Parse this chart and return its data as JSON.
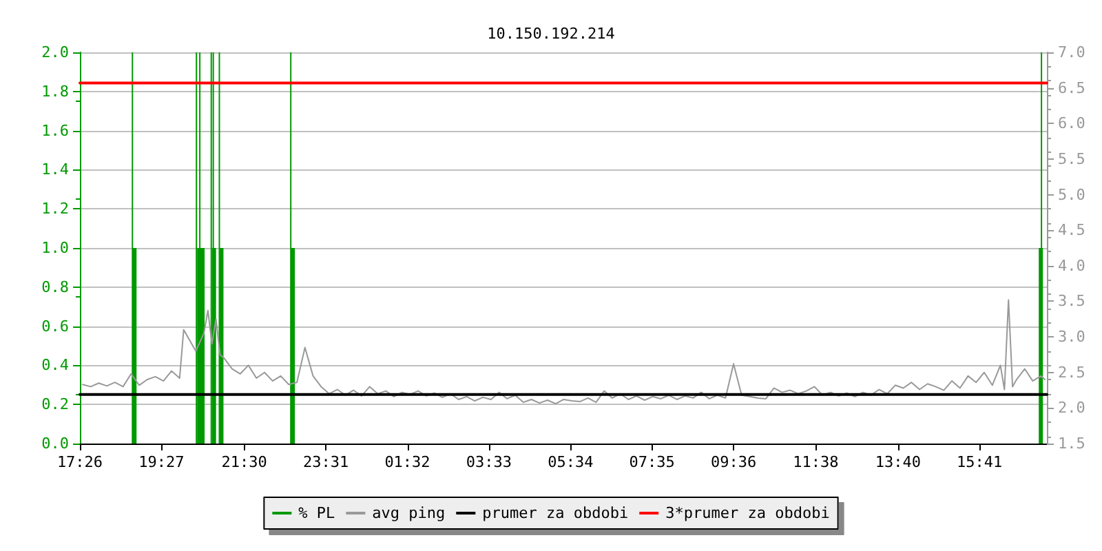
{
  "chart_data": {
    "type": "line",
    "title": "10.150.192.214",
    "xlim": [
      "--01-01T17:26",
      "--01-02T17:21"
    ],
    "xticks": [
      {
        "value": "--01-01T17:26",
        "label": "17:26"
      },
      {
        "value": "--01-01T19:27",
        "label": "19:27"
      },
      {
        "value": "--01-01T21:30",
        "label": "21:30"
      },
      {
        "value": "--01-01T23:31",
        "label": "23:31"
      },
      {
        "value": "--01-02T01:32",
        "label": "01:32"
      },
      {
        "value": "--01-02T03:33",
        "label": "03:33"
      },
      {
        "value": "--01-02T05:34",
        "label": "05:34"
      },
      {
        "value": "--01-02T07:35",
        "label": "07:35"
      },
      {
        "value": "--01-02T09:36",
        "label": "09:36"
      },
      {
        "value": "--01-02T11:38",
        "label": "11:38"
      },
      {
        "value": "--01-02T13:40",
        "label": "13:40"
      },
      {
        "value": "--01-02T15:41",
        "label": "15:41"
      }
    ],
    "ylim": [
      0,
      2
    ],
    "yticks": [
      {
        "value": 0,
        "label": "0.0"
      },
      {
        "value": 0.2,
        "label": "0.2"
      },
      {
        "value": 0.4,
        "label": "0.4"
      },
      {
        "value": 0.6,
        "label": "0.6"
      },
      {
        "value": 0.8,
        "label": "0.8"
      },
      {
        "value": 1,
        "label": "1.0"
      },
      {
        "value": 1.2,
        "label": "1.2"
      },
      {
        "value": 1.4,
        "label": "1.4"
      },
      {
        "value": 1.6,
        "label": "1.6"
      },
      {
        "value": 1.8,
        "label": "1.8"
      },
      {
        "value": 2,
        "label": "2.0"
      }
    ],
    "y2lim": [
      1.5,
      7
    ],
    "y2ticks": [
      1.5,
      {
        "value": 2,
        "label": "2.0"
      },
      2.5,
      {
        "value": 3,
        "label": "3.0"
      },
      3.5,
      {
        "value": 4,
        "label": "4.0"
      },
      4.5,
      {
        "value": 5,
        "label": "5.0"
      },
      5.5,
      {
        "value": 6,
        "label": "6.0"
      },
      6.5,
      {
        "value": 7,
        "label": "7.0"
      }
    ],
    "grid": "y",
    "legend": "bottom",
    "marker": "none",
    "line_style": "solid",
    "series": [
      {
        "name": "% PL",
        "type": "bar",
        "color": "#009900",
        "x": [
          "--01-01T18:46",
          "--01-01T18:47",
          "--01-01T20:21",
          "--01-01T20:23",
          "--01-01T20:26",
          "--01-01T20:28",
          "--01-01T20:43",
          "--01-01T20:45",
          "--01-01T20:46",
          "--01-01T20:55",
          "--01-01T20:56",
          "--01-01T22:41",
          "--01-01T22:42",
          "--01-02T17:12",
          "--01-02T17:15"
        ],
        "values": [
          2,
          1,
          2,
          1,
          2,
          1,
          2,
          1,
          2,
          2,
          1,
          2,
          1,
          1,
          2
        ]
      },
      {
        "name": "avg ping",
        "color": "#999999",
        "axis": "y2",
        "x": [
          "--01-01T17:30",
          "--01-01T17:42",
          "--01-01T17:54",
          "--01-01T18:06",
          "--01-01T18:18",
          "--01-01T18:30",
          "--01-01T18:42",
          "--01-01T18:54",
          "--01-01T19:06",
          "--01-01T19:18",
          "--01-01T19:30",
          "--01-01T19:42",
          "--01-01T19:54",
          "--01-01T20:00",
          "--01-01T20:18",
          "--01-01T20:30",
          "--01-01T20:36",
          "--01-01T20:42",
          "--01-01T20:48",
          "--01-01T20:54",
          "--01-01T21:00",
          "--01-01T21:12",
          "--01-01T21:24",
          "--01-01T21:36",
          "--01-01T21:48",
          "--01-01T22:00",
          "--01-01T22:12",
          "--01-01T22:24",
          "--01-01T22:36",
          "--01-01T22:48",
          "--01-01T23:00",
          "--01-01T23:12",
          "--01-01T23:24",
          "--01-01T23:36",
          "--01-01T23:48",
          "--01-02T00:00",
          "--01-02T00:12",
          "--01-02T00:24",
          "--01-02T00:36",
          "--01-02T00:48",
          "--01-02T01:00",
          "--01-02T01:12",
          "--01-02T01:24",
          "--01-02T01:36",
          "--01-02T01:48",
          "--01-02T02:00",
          "--01-02T02:12",
          "--01-02T02:24",
          "--01-02T02:36",
          "--01-02T02:48",
          "--01-02T03:00",
          "--01-02T03:12",
          "--01-02T03:24",
          "--01-02T03:36",
          "--01-02T03:48",
          "--01-02T04:00",
          "--01-02T04:12",
          "--01-02T04:24",
          "--01-02T04:36",
          "--01-02T04:48",
          "--01-02T05:00",
          "--01-02T05:12",
          "--01-02T05:24",
          "--01-02T05:36",
          "--01-02T05:48",
          "--01-02T06:00",
          "--01-02T06:12",
          "--01-02T06:24",
          "--01-02T06:36",
          "--01-02T06:48",
          "--01-02T07:00",
          "--01-02T07:12",
          "--01-02T07:24",
          "--01-02T07:36",
          "--01-02T07:48",
          "--01-02T08:00",
          "--01-02T08:12",
          "--01-02T08:24",
          "--01-02T08:36",
          "--01-02T08:48",
          "--01-02T09:00",
          "--01-02T09:12",
          "--01-02T09:24",
          "--01-02T09:36",
          "--01-02T09:48",
          "--01-02T10:00",
          "--01-02T10:12",
          "--01-02T10:24",
          "--01-02T10:36",
          "--01-02T10:48",
          "--01-02T11:00",
          "--01-02T11:12",
          "--01-02T11:24",
          "--01-02T11:36",
          "--01-02T11:48",
          "--01-02T12:00",
          "--01-02T12:12",
          "--01-02T12:24",
          "--01-02T12:36",
          "--01-02T12:48",
          "--01-02T13:00",
          "--01-02T13:12",
          "--01-02T13:24",
          "--01-02T13:36",
          "--01-02T13:48",
          "--01-02T14:00",
          "--01-02T14:12",
          "--01-02T14:24",
          "--01-02T14:36",
          "--01-02T14:48",
          "--01-02T15:00",
          "--01-02T15:12",
          "--01-02T15:24",
          "--01-02T15:36",
          "--01-02T15:48",
          "--01-02T16:00",
          "--01-02T16:12",
          "--01-02T16:18",
          "--01-02T16:24",
          "--01-02T16:30",
          "--01-02T16:36",
          "--01-02T16:48",
          "--01-02T17:00",
          "--01-02T17:12",
          "--01-02T17:18"
        ],
        "values": [
          2.33,
          2.3,
          2.35,
          2.31,
          2.36,
          2.3,
          2.48,
          2.32,
          2.4,
          2.44,
          2.38,
          2.52,
          2.42,
          3.1,
          2.8,
          3.05,
          3.37,
          2.9,
          3.25,
          2.75,
          2.7,
          2.55,
          2.48,
          2.6,
          2.42,
          2.5,
          2.38,
          2.45,
          2.33,
          2.36,
          2.85,
          2.45,
          2.3,
          2.2,
          2.26,
          2.18,
          2.25,
          2.17,
          2.3,
          2.2,
          2.24,
          2.16,
          2.22,
          2.19,
          2.24,
          2.17,
          2.21,
          2.15,
          2.2,
          2.12,
          2.16,
          2.1,
          2.15,
          2.12,
          2.22,
          2.13,
          2.18,
          2.08,
          2.12,
          2.07,
          2.11,
          2.06,
          2.12,
          2.1,
          2.09,
          2.14,
          2.08,
          2.24,
          2.14,
          2.2,
          2.12,
          2.17,
          2.11,
          2.16,
          2.13,
          2.18,
          2.12,
          2.17,
          2.14,
          2.22,
          2.13,
          2.18,
          2.14,
          2.62,
          2.18,
          2.16,
          2.14,
          2.13,
          2.28,
          2.22,
          2.25,
          2.2,
          2.24,
          2.3,
          2.18,
          2.22,
          2.17,
          2.21,
          2.16,
          2.22,
          2.18,
          2.26,
          2.2,
          2.32,
          2.28,
          2.36,
          2.26,
          2.34,
          2.3,
          2.25,
          2.38,
          2.28,
          2.45,
          2.36,
          2.5,
          2.32,
          2.6,
          2.26,
          3.52,
          2.3,
          2.4,
          2.55,
          2.38,
          2.45,
          2.4
        ]
      },
      {
        "name": "prumer za obdobi",
        "color": "#000000",
        "axis": "y2",
        "x": [
          "--01-01T17:26",
          "--01-02T17:21"
        ],
        "values": [
          2.19,
          2.19
        ]
      },
      {
        "name": "3*prumer za obdobi",
        "color": "#ff0000",
        "axis": "y2",
        "x": [
          "--01-01T17:26",
          "--01-02T17:21"
        ],
        "values": [
          6.57,
          6.57
        ]
      }
    ]
  }
}
